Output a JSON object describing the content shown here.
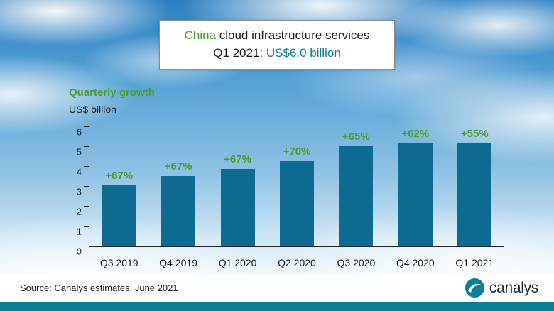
{
  "header": {
    "title_highlight": "China",
    "title_rest": " cloud infrastructure services",
    "subtitle_prefix": "Q1 2021: ",
    "subtitle_value": "US$6.0 billion"
  },
  "axis_titles": {
    "growth_label": "Quarterly growth",
    "unit_label": "US$ billion"
  },
  "chart_data": {
    "type": "bar",
    "title": "China cloud infrastructure services Q1 2021: US$6.0 billion",
    "categories": [
      "Q3 2019",
      "Q4 2019",
      "Q1 2020",
      "Q2 2020",
      "Q3 2020",
      "Q4 2020",
      "Q1 2021"
    ],
    "values": [
      3.05,
      3.5,
      3.85,
      4.25,
      5.0,
      5.75,
      6.0
    ],
    "growth_labels": [
      "+87%",
      "+67%",
      "+67%",
      "+70%",
      "+65%",
      "+62%",
      "+55%"
    ],
    "xlabel": "",
    "ylabel": "US$ billion",
    "ylim": [
      0,
      6
    ],
    "yticks": [
      "0",
      "1",
      "2",
      "3",
      "4",
      "5",
      "6"
    ],
    "grid": false,
    "legend": "none",
    "bar_color": "#0d6a91",
    "growth_label_color": "#4e9b2d"
  },
  "footer": {
    "source": "Source: Canalys estimates, June 2021",
    "logo_text": "canalys"
  },
  "colors": {
    "green_accent": "#4e9b2d",
    "teal_accent": "#0c7d9c",
    "bottom_bar": "#0c7f95"
  }
}
